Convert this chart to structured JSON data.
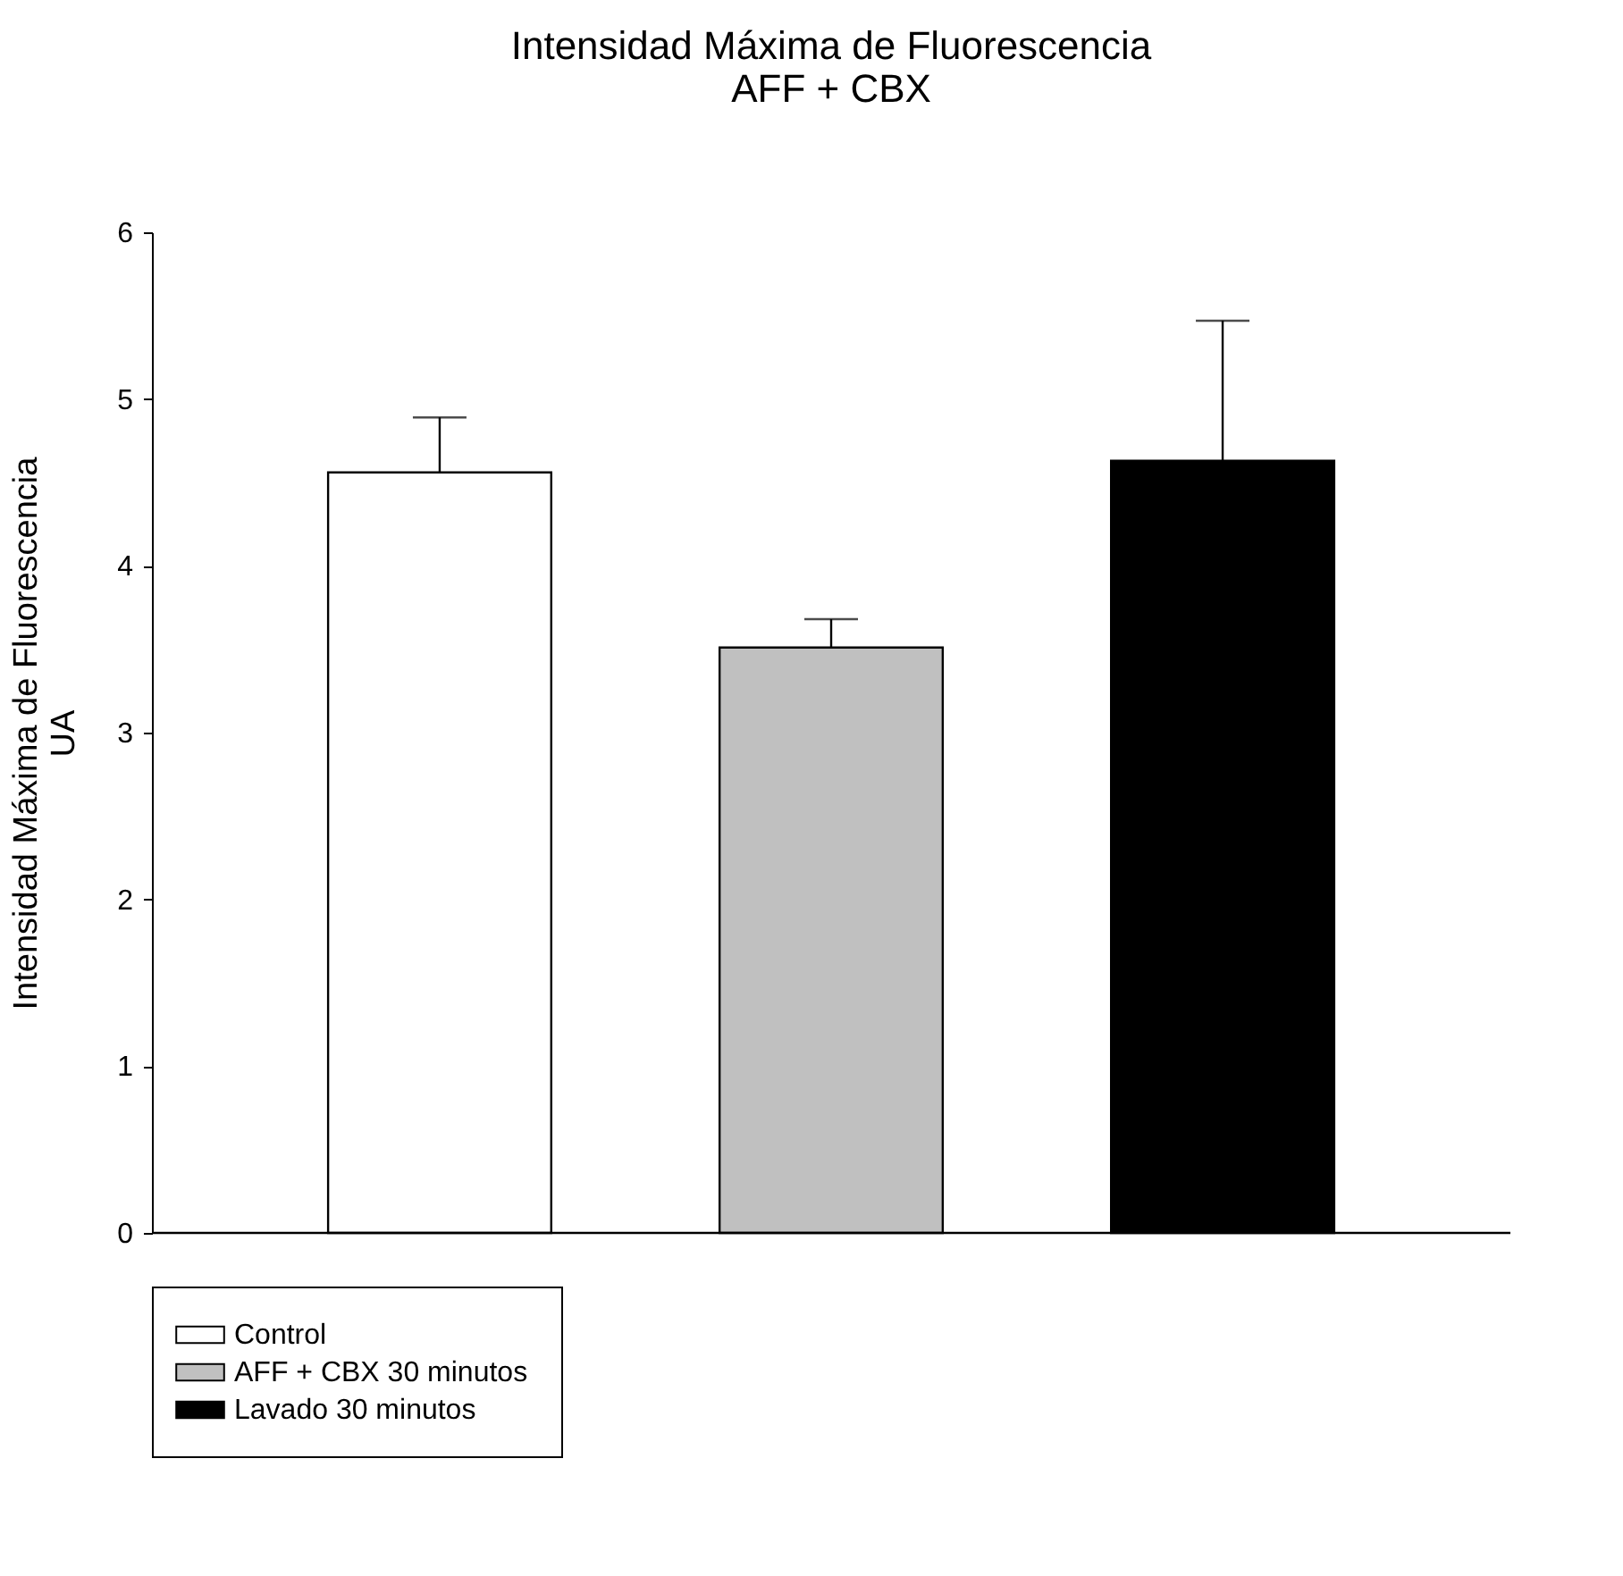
{
  "chart_data": {
    "type": "bar",
    "title": "Intensidad Máxima de Fluorescencia\nAFF + CBX",
    "ylabel": "Intensidad Máxima de Fluorescencia\nUA",
    "categories": [
      null,
      null,
      null
    ],
    "series": [
      {
        "name": "Control",
        "color": "#ffffff",
        "values": [
          4.56,
          null,
          null
        ],
        "errors": [
          0.33,
          null,
          null
        ]
      },
      {
        "name": "AFF + CBX 30 minutos",
        "color": "#c0c0c0",
        "values": [
          null,
          3.51,
          null
        ],
        "errors": [
          null,
          0.17,
          null
        ]
      },
      {
        "name": "Lavado 30 minutos",
        "color": "#000000",
        "values": [
          null,
          null,
          4.63
        ],
        "errors": [
          null,
          null,
          0.84
        ]
      }
    ],
    "ylim": [
      0,
      6
    ],
    "yticks": [
      0,
      1,
      2,
      3,
      4,
      5,
      6
    ],
    "grid": false,
    "legend": "bottom left",
    "tick_labels": "y"
  }
}
